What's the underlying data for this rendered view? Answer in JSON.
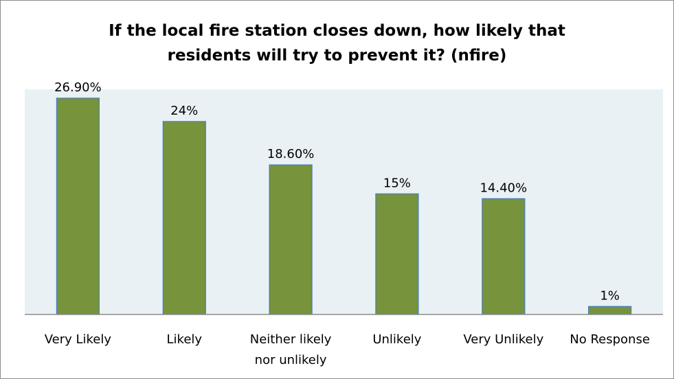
{
  "chart_data": {
    "type": "bar",
    "title_lines": [
      "If the local fire station closes down, how likely that",
      "residents will try to prevent it? (nfire)"
    ],
    "categories": [
      [
        "Very Likely"
      ],
      [
        "Likely"
      ],
      [
        "Neither likely",
        "nor unlikely"
      ],
      [
        "Unlikely"
      ],
      [
        "Very Unlikely"
      ],
      [
        "No Response"
      ]
    ],
    "values": [
      26.9,
      24,
      18.6,
      15,
      14.4,
      1
    ],
    "data_labels": [
      "26.90%",
      "24%",
      "18.60%",
      "15%",
      "14.40%",
      "1%"
    ],
    "ylim": [
      0,
      28
    ],
    "grid": false,
    "legend": "none",
    "colors": {
      "bar_fill": "#77933c",
      "bar_stroke": "#4a7ebb",
      "plot_background": "#e9f1f5",
      "axis_line": "#8c8c8c"
    }
  }
}
